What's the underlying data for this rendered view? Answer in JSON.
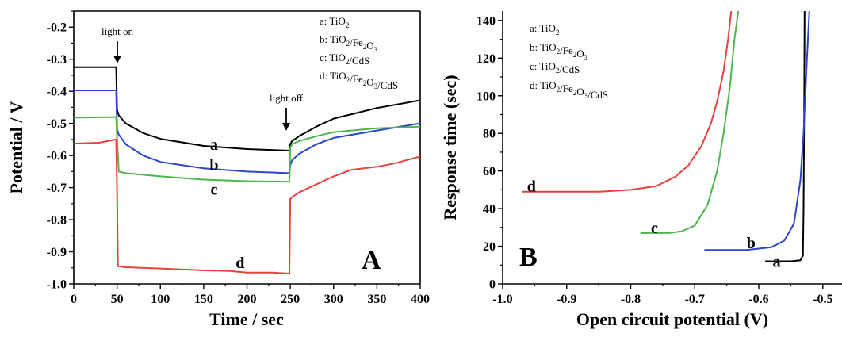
{
  "chart_data": [
    {
      "type": "line",
      "panel_label": "A",
      "xlabel": "Time / sec",
      "ylabel": "Potential / V",
      "xlim": [
        0,
        400
      ],
      "ylim": [
        -1.0,
        -0.15
      ],
      "xticks": [
        0,
        50,
        100,
        150,
        200,
        250,
        300,
        350,
        400
      ],
      "xtick_labels": [
        "0",
        "50",
        "100",
        "150",
        "200",
        "250",
        "300",
        "350",
        "400"
      ],
      "yticks": [
        -1.0,
        -0.9,
        -0.8,
        -0.7,
        -0.6,
        -0.5,
        -0.4,
        -0.3,
        -0.2
      ],
      "ytick_labels": [
        "-1.0",
        "-0.9",
        "-0.8",
        "-0.7",
        "-0.6",
        "-0.5",
        "-0.4",
        "-0.3",
        "-0.2"
      ],
      "grid": false,
      "legend_position": "top-right",
      "legend": [
        {
          "prefix": "a: ",
          "parts": [
            [
              "TiO",
              ""
            ],
            [
              "2",
              "sub"
            ]
          ]
        },
        {
          "prefix": "b: ",
          "parts": [
            [
              "TiO",
              ""
            ],
            [
              "2",
              "sub"
            ],
            [
              "/Fe",
              ""
            ],
            [
              "2",
              "sub"
            ],
            [
              "O",
              ""
            ],
            [
              "3",
              "sub"
            ]
          ]
        },
        {
          "prefix": "c: ",
          "parts": [
            [
              "TiO",
              ""
            ],
            [
              "2",
              "sub"
            ],
            [
              "/CdS",
              ""
            ]
          ]
        },
        {
          "prefix": "d: ",
          "parts": [
            [
              "TiO",
              ""
            ],
            [
              "2",
              "sub"
            ],
            [
              "/Fe",
              ""
            ],
            [
              "2",
              "sub"
            ],
            [
              "O",
              ""
            ],
            [
              "3",
              "sub"
            ],
            [
              "/CdS",
              ""
            ]
          ]
        }
      ],
      "annotations": [
        {
          "text": "light on",
          "x": 50
        },
        {
          "text": "light off",
          "x": 250
        }
      ],
      "series": [
        {
          "name": "a",
          "color": "#000000",
          "label_at": [
            162,
            -0.565
          ],
          "x": [
            0,
            49,
            50,
            52,
            60,
            80,
            100,
            150,
            200,
            249,
            250,
            252,
            260,
            280,
            300,
            350,
            400
          ],
          "y": [
            -0.325,
            -0.325,
            -0.458,
            -0.475,
            -0.5,
            -0.53,
            -0.548,
            -0.57,
            -0.58,
            -0.585,
            -0.565,
            -0.555,
            -0.54,
            -0.51,
            -0.485,
            -0.452,
            -0.428
          ]
        },
        {
          "name": "b",
          "color": "#2b46c8",
          "label_at": [
            162,
            -0.628
          ],
          "x": [
            0,
            49,
            50,
            52,
            60,
            80,
            100,
            150,
            200,
            249,
            250,
            252,
            260,
            280,
            300,
            350,
            400
          ],
          "y": [
            -0.397,
            -0.397,
            -0.52,
            -0.535,
            -0.565,
            -0.6,
            -0.62,
            -0.64,
            -0.65,
            -0.655,
            -0.63,
            -0.615,
            -0.595,
            -0.565,
            -0.545,
            -0.522,
            -0.5
          ]
        },
        {
          "name": "c",
          "color": "#4cb84c",
          "label_at": [
            162,
            -0.705
          ],
          "x": [
            0,
            49,
            50,
            52,
            60,
            100,
            150,
            200,
            249,
            250,
            252,
            260,
            280,
            300,
            350,
            400
          ],
          "y": [
            -0.482,
            -0.48,
            -0.545,
            -0.65,
            -0.655,
            -0.665,
            -0.675,
            -0.68,
            -0.682,
            -0.575,
            -0.565,
            -0.555,
            -0.54,
            -0.527,
            -0.515,
            -0.51
          ]
        },
        {
          "name": "d",
          "color": "#e8413c",
          "label_at": [
            192,
            -0.933
          ],
          "x": [
            0,
            30,
            49,
            50,
            51,
            60,
            100,
            150,
            180,
            200,
            230,
            249,
            250,
            252,
            260,
            280,
            300,
            320,
            350,
            370,
            400
          ],
          "y": [
            -0.563,
            -0.56,
            -0.55,
            -0.7,
            -0.945,
            -0.948,
            -0.952,
            -0.958,
            -0.96,
            -0.965,
            -0.965,
            -0.968,
            -0.735,
            -0.73,
            -0.715,
            -0.69,
            -0.665,
            -0.645,
            -0.635,
            -0.625,
            -0.603
          ]
        }
      ]
    },
    {
      "type": "line",
      "panel_label": "B",
      "xlabel": "Open circuit potential (V)",
      "ylabel": "Response time (sec)",
      "xlim": [
        -1.0,
        -0.47
      ],
      "ylim": [
        0,
        145
      ],
      "xticks": [
        -1.0,
        -0.9,
        -0.8,
        -0.7,
        -0.6,
        -0.5
      ],
      "xtick_labels": [
        "-1.0",
        "-0.9",
        "-0.8",
        "-0.7",
        "-0.6",
        "-0.5"
      ],
      "yticks": [
        0,
        20,
        40,
        60,
        80,
        100,
        120,
        140
      ],
      "ytick_labels": [
        "0",
        "20",
        "40",
        "60",
        "80",
        "100",
        "120",
        "140"
      ],
      "grid": false,
      "legend_position": "top-left",
      "legend": [
        {
          "prefix": "a: ",
          "parts": [
            [
              "TiO",
              ""
            ],
            [
              "2",
              "sub"
            ]
          ]
        },
        {
          "prefix": "b: ",
          "parts": [
            [
              "TiO",
              ""
            ],
            [
              "2",
              "sub"
            ],
            [
              "/Fe",
              ""
            ],
            [
              "2",
              "sub"
            ],
            [
              "O",
              ""
            ],
            [
              "3",
              "sub"
            ]
          ]
        },
        {
          "prefix": "c: ",
          "parts": [
            [
              "TiO",
              ""
            ],
            [
              "2",
              "sub"
            ],
            [
              "/CdS",
              ""
            ]
          ]
        },
        {
          "prefix": "d: ",
          "parts": [
            [
              "TiO",
              ""
            ],
            [
              "2",
              "sub"
            ],
            [
              "/Fe",
              ""
            ],
            [
              "2",
              "sub"
            ],
            [
              "O",
              ""
            ],
            [
              "3",
              "sub"
            ],
            [
              "/CdS",
              ""
            ]
          ]
        }
      ],
      "series": [
        {
          "name": "a",
          "color": "#000000",
          "label_at": [
            -0.572,
            12
          ],
          "x": [
            -0.59,
            -0.55,
            -0.535,
            -0.531,
            -0.53,
            -0.529,
            -0.5285
          ],
          "y": [
            12,
            12,
            12.5,
            15,
            40,
            100,
            145
          ]
        },
        {
          "name": "b",
          "color": "#2b46c8",
          "label_at": [
            -0.612,
            22
          ],
          "x": [
            -0.685,
            -0.62,
            -0.58,
            -0.56,
            -0.545,
            -0.535,
            -0.53,
            -0.525,
            -0.521
          ],
          "y": [
            18,
            18,
            19.5,
            23,
            32,
            55,
            80,
            118,
            145
          ]
        },
        {
          "name": "c",
          "color": "#4cb84c",
          "label_at": [
            -0.763,
            30
          ],
          "x": [
            -0.785,
            -0.74,
            -0.72,
            -0.7,
            -0.68,
            -0.665,
            -0.655,
            -0.645,
            -0.638,
            -0.632
          ],
          "y": [
            27,
            27,
            28,
            31,
            42,
            60,
            80,
            105,
            130,
            145
          ]
        },
        {
          "name": "d",
          "color": "#e8413c",
          "label_at": [
            -0.955,
            52
          ],
          "x": [
            -0.97,
            -0.85,
            -0.8,
            -0.76,
            -0.73,
            -0.71,
            -0.69,
            -0.675,
            -0.665,
            -0.655,
            -0.648,
            -0.643
          ],
          "y": [
            49,
            49,
            50,
            52,
            57,
            63,
            73,
            85,
            97,
            113,
            130,
            145
          ]
        }
      ]
    }
  ]
}
